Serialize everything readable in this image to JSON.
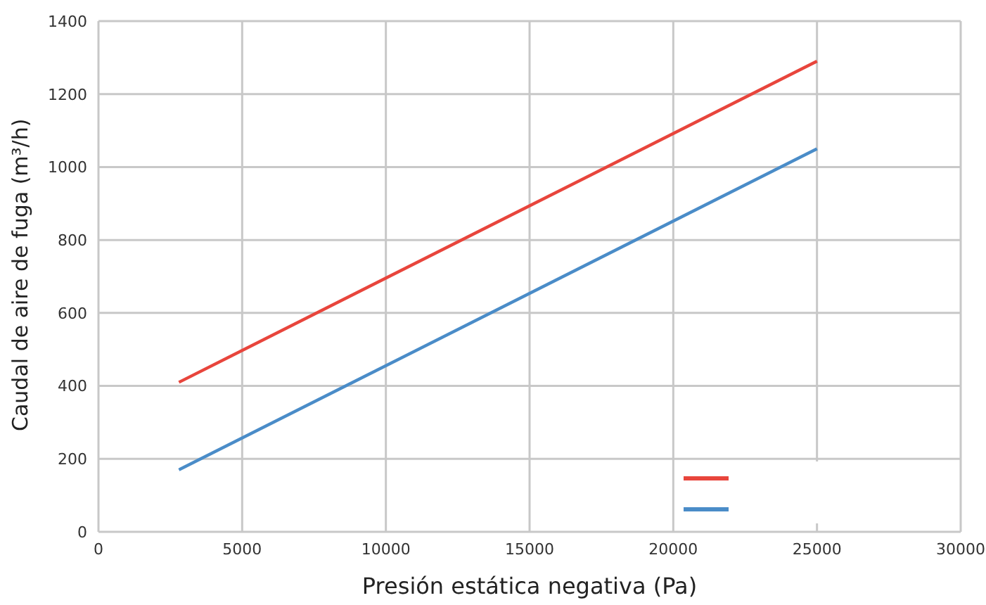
{
  "chart_data": {
    "type": "line",
    "xlabel": "Presión estática negativa (Pa)",
    "ylabel": "Caudal de aire de fuga (m³/h)",
    "x": [
      2800,
      25000
    ],
    "series": [
      {
        "color": "#e8453c",
        "values": [
          410,
          1290
        ]
      },
      {
        "color": "#4a8cc8",
        "values": [
          170,
          1050
        ]
      }
    ],
    "xlim": [
      0,
      30000
    ],
    "xticks": [
      0,
      5000,
      10000,
      15000,
      20000,
      25000,
      30000
    ],
    "ylim": [
      0,
      1400
    ],
    "yticks": [
      0,
      200,
      400,
      600,
      800,
      1000,
      1200,
      1400
    ],
    "grid": true,
    "marker": "none",
    "line_style": "solid"
  }
}
